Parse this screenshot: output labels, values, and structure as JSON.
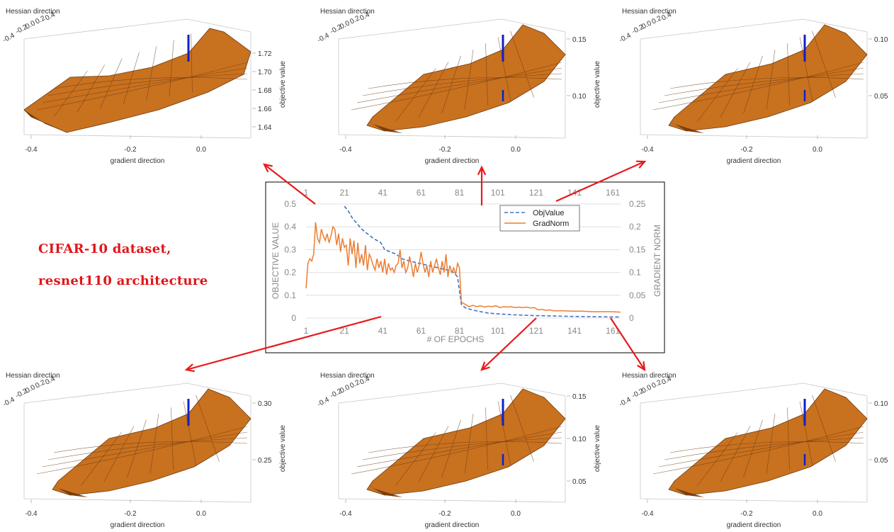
{
  "caption": {
    "line1": "CIFAR-10 dataset,",
    "line2": "resnet110 architecture"
  },
  "colors": {
    "surface": "#c8711f",
    "surface_dark": "#7a3e0b",
    "mesh": "#6b3a12",
    "marker": "#1020c8",
    "arrow": "#e8191c",
    "obj_line": "#4472c4",
    "grad_line": "#ed7d31",
    "grid": "#d9d9d9"
  },
  "chart_data": [
    {
      "type": "line",
      "xlabel": "# OF EPOCHS",
      "ylabel": "OBJECTIVE VALUE",
      "y2label": "GRADIENT NORM",
      "x_ticks": [
        "1",
        "21",
        "41",
        "61",
        "81",
        "101",
        "121",
        "141",
        "161"
      ],
      "x_top_ticks": [
        "1",
        "21",
        "41",
        "61",
        "81",
        "101",
        "121",
        "141",
        "161"
      ],
      "y_ticks": [
        "0",
        "0.1",
        "0.2",
        "0.3",
        "0.4",
        "0.5"
      ],
      "y2_ticks": [
        "0",
        "0.05",
        "0.1",
        "0.15",
        "0.2",
        "0.25"
      ],
      "xlim": [
        1,
        165
      ],
      "ylim": [
        0,
        0.5
      ],
      "y2lim": [
        0,
        0.25
      ],
      "grid": true,
      "legend_position": "top-right",
      "series": [
        {
          "name": "ObjValue",
          "axis": "left",
          "style": "dashed",
          "x": [
            21,
            23,
            25,
            27,
            30,
            33,
            36,
            38,
            40,
            42,
            45,
            48,
            51,
            55,
            60,
            65,
            70,
            75,
            78,
            80,
            81,
            82,
            84,
            88,
            92,
            96,
            100,
            110,
            120,
            130,
            140,
            150,
            160,
            165
          ],
          "y": [
            0.49,
            0.47,
            0.44,
            0.42,
            0.39,
            0.37,
            0.35,
            0.34,
            0.33,
            0.3,
            0.29,
            0.28,
            0.26,
            0.25,
            0.24,
            0.23,
            0.22,
            0.21,
            0.2,
            0.18,
            0.12,
            0.06,
            0.045,
            0.035,
            0.028,
            0.022,
            0.019,
            0.014,
            0.011,
            0.009,
            0.007,
            0.006,
            0.005,
            0.005
          ]
        },
        {
          "name": "GradNorm",
          "axis": "right",
          "style": "solid",
          "x": [
            1,
            2,
            3,
            4,
            5,
            6,
            7,
            8,
            9,
            10,
            11,
            12,
            13,
            14,
            15,
            16,
            17,
            18,
            19,
            20,
            21,
            22,
            23,
            24,
            25,
            26,
            27,
            28,
            29,
            30,
            31,
            32,
            33,
            34,
            35,
            36,
            37,
            38,
            39,
            40,
            41,
            42,
            43,
            44,
            45,
            46,
            47,
            48,
            49,
            50,
            51,
            52,
            53,
            54,
            55,
            56,
            57,
            58,
            59,
            60,
            61,
            62,
            63,
            64,
            65,
            66,
            67,
            68,
            69,
            70,
            71,
            72,
            73,
            74,
            75,
            76,
            77,
            78,
            79,
            80,
            81,
            82,
            84,
            86,
            88,
            90,
            92,
            94,
            96,
            98,
            100,
            102,
            104,
            106,
            108,
            110,
            112,
            114,
            116,
            118,
            120,
            122,
            124,
            126,
            128,
            130,
            135,
            140,
            145,
            150,
            155,
            160,
            165
          ],
          "y": [
            0.065,
            0.12,
            0.13,
            0.125,
            0.14,
            0.21,
            0.175,
            0.165,
            0.195,
            0.18,
            0.17,
            0.185,
            0.165,
            0.18,
            0.2,
            0.195,
            0.16,
            0.185,
            0.145,
            0.175,
            0.155,
            0.16,
            0.115,
            0.175,
            0.14,
            0.17,
            0.11,
            0.165,
            0.12,
            0.14,
            0.115,
            0.16,
            0.105,
            0.14,
            0.13,
            0.115,
            0.105,
            0.13,
            0.11,
            0.125,
            0.1,
            0.13,
            0.095,
            0.12,
            0.105,
            0.11,
            0.1,
            0.115,
            0.12,
            0.15,
            0.11,
            0.125,
            0.1,
            0.11,
            0.135,
            0.115,
            0.09,
            0.12,
            0.1,
            0.115,
            0.145,
            0.12,
            0.1,
            0.115,
            0.09,
            0.125,
            0.1,
            0.115,
            0.13,
            0.11,
            0.095,
            0.125,
            0.1,
            0.14,
            0.09,
            0.115,
            0.1,
            0.11,
            0.095,
            0.12,
            0.11,
            0.035,
            0.03,
            0.025,
            0.028,
            0.025,
            0.027,
            0.024,
            0.026,
            0.025,
            0.027,
            0.023,
            0.025,
            0.024,
            0.025,
            0.023,
            0.024,
            0.023,
            0.024,
            0.022,
            0.023,
            0.018,
            0.019,
            0.017,
            0.018,
            0.016,
            0.016,
            0.015,
            0.015,
            0.014,
            0.014,
            0.014,
            0.013
          ]
        }
      ]
    },
    {
      "type": "other",
      "title": "",
      "xlabel": "gradient direction",
      "ylabel": "Hessian direction",
      "zlabel": "objective value",
      "x_ticks": [
        "-0.4",
        "-0.2",
        "0.0"
      ],
      "y_ticks": [
        "-0.4",
        "-0.2",
        "0.0",
        "0.2",
        "0.4"
      ],
      "z_ticks": [
        "1.72",
        "1.70",
        "1.68",
        "1.66",
        "1.64"
      ]
    },
    {
      "type": "other",
      "title": "",
      "xlabel": "gradient direction",
      "ylabel": "Hessian direction",
      "zlabel": "objective value",
      "x_ticks": [
        "-0.4",
        "-0.2",
        "0.0"
      ],
      "y_ticks": [
        "-0.4",
        "-0.2",
        "0.0",
        "0.2",
        "0.4"
      ],
      "z_ticks": [
        "0.15",
        "0.10"
      ]
    },
    {
      "type": "other",
      "title": "",
      "xlabel": "gradient direction",
      "ylabel": "Hessian direction",
      "zlabel": "objective value",
      "x_ticks": [
        "-0.4",
        "-0.2",
        "0.0"
      ],
      "y_ticks": [
        "-0.4",
        "-0.2",
        "0.0",
        "0.2",
        "0.4"
      ],
      "z_ticks": [
        "0.10",
        "0.05"
      ]
    },
    {
      "type": "other",
      "title": "",
      "xlabel": "gradient direction",
      "ylabel": "Hessian direction",
      "zlabel": "objective value",
      "x_ticks": [
        "-0.4",
        "-0.2",
        "0.0"
      ],
      "y_ticks": [
        "-0.4",
        "-0.2",
        "0.0",
        "0.2",
        "0.4"
      ],
      "z_ticks": [
        "0.30",
        "0.25"
      ]
    },
    {
      "type": "other",
      "title": "",
      "xlabel": "gradient direction",
      "ylabel": "Hessian direction",
      "zlabel": "objective value",
      "x_ticks": [
        "-0.4",
        "-0.2",
        "0.0"
      ],
      "y_ticks": [
        "-0.4",
        "-0.2",
        "0.0",
        "0.2",
        "0.4"
      ],
      "z_ticks": [
        "0.15",
        "0.10",
        "0.05"
      ]
    },
    {
      "type": "other",
      "title": "",
      "xlabel": "gradient direction",
      "ylabel": "Hessian direction",
      "zlabel": "objective value",
      "x_ticks": [
        "-0.4",
        "-0.2",
        "0.0"
      ],
      "y_ticks": [
        "-0.4",
        "-0.2",
        "0.0",
        "0.2",
        "0.4"
      ],
      "z_ticks": [
        "0.10",
        "0.05"
      ]
    }
  ]
}
